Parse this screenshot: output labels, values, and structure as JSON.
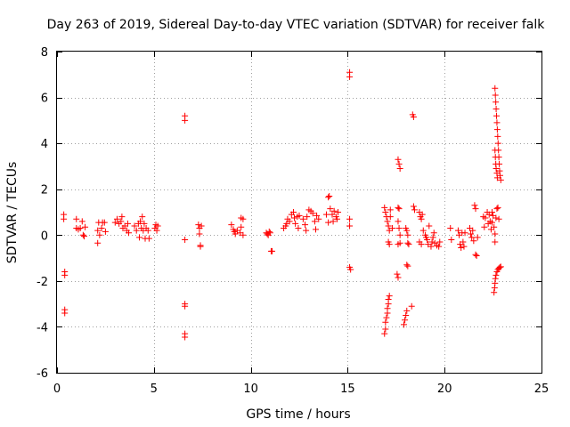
{
  "chart_data": {
    "type": "scatter",
    "title": "Day 263 of 2019, Sidereal Day-to-day VTEC variation (SDTVAR) for receiver falk",
    "xlabel": "GPS time / hours",
    "ylabel": "SDTVAR / TECUs",
    "xlim": [
      0,
      25
    ],
    "ylim": [
      -6,
      8
    ],
    "xticks": [
      "0",
      "5",
      "10",
      "15",
      "20",
      "25"
    ],
    "yticks": [
      "-6",
      "-4",
      "-2",
      "0",
      "2",
      "4",
      "6",
      "8"
    ],
    "grid": true,
    "marker": "+",
    "color": "#ff0000",
    "series": [
      {
        "name": "SDTVAR",
        "points": [
          [
            0.35,
            0.9
          ],
          [
            0.35,
            0.7
          ],
          [
            0.4,
            -1.6
          ],
          [
            0.4,
            -1.75
          ],
          [
            0.4,
            -3.25
          ],
          [
            0.4,
            -3.4
          ],
          [
            1.0,
            0.7
          ],
          [
            1.0,
            0.3
          ],
          [
            1.1,
            0.25
          ],
          [
            1.2,
            0.3
          ],
          [
            1.3,
            0.6
          ],
          [
            1.35,
            0.0
          ],
          [
            1.4,
            -0.05
          ],
          [
            1.45,
            0.35
          ],
          [
            2.1,
            -0.35
          ],
          [
            2.1,
            0.2
          ],
          [
            2.15,
            0.55
          ],
          [
            2.2,
            0.0
          ],
          [
            2.3,
            0.3
          ],
          [
            2.35,
            0.55
          ],
          [
            2.45,
            0.55
          ],
          [
            2.5,
            0.15
          ],
          [
            3.0,
            0.55
          ],
          [
            3.1,
            0.7
          ],
          [
            3.2,
            0.5
          ],
          [
            3.3,
            0.6
          ],
          [
            3.35,
            0.8
          ],
          [
            3.4,
            0.3
          ],
          [
            3.5,
            0.4
          ],
          [
            3.6,
            0.2
          ],
          [
            3.65,
            0.5
          ],
          [
            3.7,
            0.1
          ],
          [
            4.0,
            0.4
          ],
          [
            4.1,
            0.2
          ],
          [
            4.2,
            0.5
          ],
          [
            4.25,
            -0.1
          ],
          [
            4.3,
            0.6
          ],
          [
            4.35,
            0.3
          ],
          [
            4.4,
            0.8
          ],
          [
            4.45,
            0.2
          ],
          [
            4.5,
            0.5
          ],
          [
            4.55,
            -0.15
          ],
          [
            4.6,
            0.3
          ],
          [
            4.7,
            0.2
          ],
          [
            4.75,
            -0.15
          ],
          [
            5.05,
            0.3
          ],
          [
            5.1,
            0.45
          ],
          [
            5.15,
            0.2
          ],
          [
            5.2,
            0.4
          ],
          [
            6.6,
            5.2
          ],
          [
            6.6,
            5.0
          ],
          [
            6.6,
            -3.0
          ],
          [
            6.6,
            -3.1
          ],
          [
            6.6,
            -4.3
          ],
          [
            6.6,
            -4.45
          ],
          [
            6.6,
            -0.2
          ],
          [
            7.3,
            0.45
          ],
          [
            7.35,
            0.3
          ],
          [
            7.35,
            0.05
          ],
          [
            7.4,
            -0.5
          ],
          [
            7.4,
            -0.45
          ],
          [
            7.45,
            0.4
          ],
          [
            9.0,
            0.45
          ],
          [
            9.1,
            0.25
          ],
          [
            9.15,
            0.15
          ],
          [
            9.2,
            0.05
          ],
          [
            9.3,
            0.2
          ],
          [
            9.45,
            0.1
          ],
          [
            9.5,
            0.35
          ],
          [
            9.5,
            0.75
          ],
          [
            9.6,
            0.7
          ],
          [
            9.6,
            0.0
          ],
          [
            10.8,
            0.1
          ],
          [
            10.85,
            0.05
          ],
          [
            10.9,
            0.0
          ],
          [
            10.95,
            0.15
          ],
          [
            11.0,
            0.1
          ],
          [
            11.05,
            -0.7
          ],
          [
            11.1,
            -0.7
          ],
          [
            11.7,
            0.3
          ],
          [
            11.8,
            0.4
          ],
          [
            11.85,
            0.5
          ],
          [
            11.9,
            0.7
          ],
          [
            12.0,
            0.6
          ],
          [
            12.1,
            0.9
          ],
          [
            12.2,
            1.0
          ],
          [
            12.25,
            0.75
          ],
          [
            12.3,
            0.5
          ],
          [
            12.4,
            0.8
          ],
          [
            12.45,
            0.3
          ],
          [
            12.5,
            0.85
          ],
          [
            12.7,
            0.7
          ],
          [
            12.8,
            0.45
          ],
          [
            12.85,
            0.2
          ],
          [
            12.9,
            0.8
          ],
          [
            13.0,
            1.1
          ],
          [
            13.1,
            1.05
          ],
          [
            13.2,
            0.95
          ],
          [
            13.3,
            0.6
          ],
          [
            13.35,
            0.25
          ],
          [
            13.4,
            0.85
          ],
          [
            13.5,
            0.7
          ],
          [
            13.9,
            0.9
          ],
          [
            14.0,
            0.55
          ],
          [
            14.0,
            1.65
          ],
          [
            14.05,
            1.7
          ],
          [
            14.1,
            1.15
          ],
          [
            14.2,
            0.9
          ],
          [
            14.25,
            0.6
          ],
          [
            14.3,
            1.05
          ],
          [
            14.4,
            0.8
          ],
          [
            14.45,
            0.7
          ],
          [
            14.5,
            1.0
          ],
          [
            15.1,
            7.1
          ],
          [
            15.1,
            6.9
          ],
          [
            15.1,
            0.7
          ],
          [
            15.1,
            0.4
          ],
          [
            15.1,
            -1.4
          ],
          [
            15.15,
            -1.5
          ],
          [
            16.9,
            -4.3
          ],
          [
            16.95,
            -4.1
          ],
          [
            16.95,
            -3.8
          ],
          [
            17.0,
            -3.6
          ],
          [
            17.05,
            -3.4
          ],
          [
            17.05,
            -3.2
          ],
          [
            17.1,
            -3.0
          ],
          [
            17.1,
            -2.8
          ],
          [
            17.15,
            -2.65
          ],
          [
            16.9,
            1.2
          ],
          [
            16.95,
            1.0
          ],
          [
            17.0,
            0.8
          ],
          [
            17.05,
            0.6
          ],
          [
            17.1,
            0.4
          ],
          [
            17.15,
            0.2
          ],
          [
            17.1,
            -0.3
          ],
          [
            17.15,
            -0.4
          ],
          [
            17.2,
            1.1
          ],
          [
            17.2,
            0.8
          ],
          [
            17.3,
            0.3
          ],
          [
            17.6,
            3.3
          ],
          [
            17.65,
            3.1
          ],
          [
            17.7,
            2.9
          ],
          [
            17.6,
            1.2
          ],
          [
            17.65,
            1.15
          ],
          [
            17.6,
            0.6
          ],
          [
            17.65,
            0.3
          ],
          [
            17.7,
            0.0
          ],
          [
            17.55,
            -1.7
          ],
          [
            17.6,
            -1.85
          ],
          [
            17.6,
            -0.4
          ],
          [
            17.7,
            -0.35
          ],
          [
            18.0,
            0.3
          ],
          [
            18.05,
            0.2
          ],
          [
            18.1,
            0.0
          ],
          [
            18.1,
            -0.35
          ],
          [
            18.15,
            -0.4
          ],
          [
            18.05,
            -1.3
          ],
          [
            18.1,
            -1.35
          ],
          [
            17.9,
            -3.9
          ],
          [
            17.95,
            -3.7
          ],
          [
            18.0,
            -3.5
          ],
          [
            18.05,
            -3.3
          ],
          [
            18.3,
            -3.1
          ],
          [
            18.35,
            5.25
          ],
          [
            18.4,
            5.15
          ],
          [
            18.4,
            1.25
          ],
          [
            18.45,
            1.1
          ],
          [
            18.7,
            1.0
          ],
          [
            18.75,
            0.8
          ],
          [
            18.8,
            0.7
          ],
          [
            18.85,
            0.9
          ],
          [
            18.7,
            -0.3
          ],
          [
            18.8,
            -0.4
          ],
          [
            18.9,
            0.2
          ],
          [
            19.0,
            0.0
          ],
          [
            19.05,
            -0.1
          ],
          [
            19.1,
            -0.2
          ],
          [
            19.15,
            -0.4
          ],
          [
            19.2,
            0.4
          ],
          [
            19.3,
            -0.5
          ],
          [
            19.35,
            -0.3
          ],
          [
            19.4,
            -0.1
          ],
          [
            19.45,
            0.1
          ],
          [
            19.5,
            -0.35
          ],
          [
            19.6,
            -0.45
          ],
          [
            19.7,
            -0.5
          ],
          [
            19.75,
            -0.3
          ],
          [
            20.3,
            0.3
          ],
          [
            20.35,
            -0.2
          ],
          [
            20.7,
            0.2
          ],
          [
            20.75,
            0.0
          ],
          [
            20.8,
            -0.4
          ],
          [
            20.85,
            -0.55
          ],
          [
            20.9,
            0.1
          ],
          [
            20.95,
            -0.3
          ],
          [
            21.0,
            -0.5
          ],
          [
            21.05,
            0.1
          ],
          [
            21.3,
            0.3
          ],
          [
            21.35,
            0.05
          ],
          [
            21.4,
            -0.1
          ],
          [
            21.45,
            0.2
          ],
          [
            21.5,
            -0.25
          ],
          [
            21.55,
            1.3
          ],
          [
            21.6,
            1.15
          ],
          [
            21.6,
            -0.85
          ],
          [
            21.65,
            -0.9
          ],
          [
            21.7,
            -0.1
          ],
          [
            22.0,
            0.8
          ],
          [
            22.05,
            0.35
          ],
          [
            22.1,
            0.75
          ],
          [
            22.2,
            1.0
          ],
          [
            22.25,
            0.5
          ],
          [
            22.3,
            0.9
          ],
          [
            22.35,
            0.6
          ],
          [
            22.4,
            0.25
          ],
          [
            22.45,
            0.55
          ],
          [
            22.45,
            1.0
          ],
          [
            22.5,
            0.85
          ],
          [
            22.55,
            0.35
          ],
          [
            22.6,
            0.05
          ],
          [
            22.6,
            -0.3
          ],
          [
            22.65,
            0.75
          ],
          [
            22.7,
            1.15
          ],
          [
            22.75,
            1.2
          ],
          [
            22.8,
            0.7
          ],
          [
            22.6,
            6.4
          ],
          [
            22.62,
            6.1
          ],
          [
            22.64,
            5.8
          ],
          [
            22.66,
            5.5
          ],
          [
            22.68,
            5.2
          ],
          [
            22.7,
            4.9
          ],
          [
            22.72,
            4.6
          ],
          [
            22.74,
            4.3
          ],
          [
            22.76,
            4.0
          ],
          [
            22.78,
            3.7
          ],
          [
            22.8,
            3.4
          ],
          [
            22.82,
            3.1
          ],
          [
            22.84,
            2.8
          ],
          [
            22.86,
            2.6
          ],
          [
            22.9,
            2.4
          ],
          [
            22.6,
            3.7
          ],
          [
            22.62,
            3.4
          ],
          [
            22.64,
            3.1
          ],
          [
            22.66,
            2.9
          ],
          [
            22.7,
            2.7
          ],
          [
            22.72,
            2.5
          ],
          [
            22.55,
            -2.5
          ],
          [
            22.58,
            -2.3
          ],
          [
            22.6,
            -2.1
          ],
          [
            22.62,
            -1.9
          ],
          [
            22.65,
            -1.75
          ],
          [
            22.7,
            -1.6
          ],
          [
            22.75,
            -1.5
          ],
          [
            22.8,
            -1.45
          ],
          [
            22.85,
            -1.4
          ],
          [
            22.9,
            -1.38
          ]
        ]
      }
    ]
  }
}
